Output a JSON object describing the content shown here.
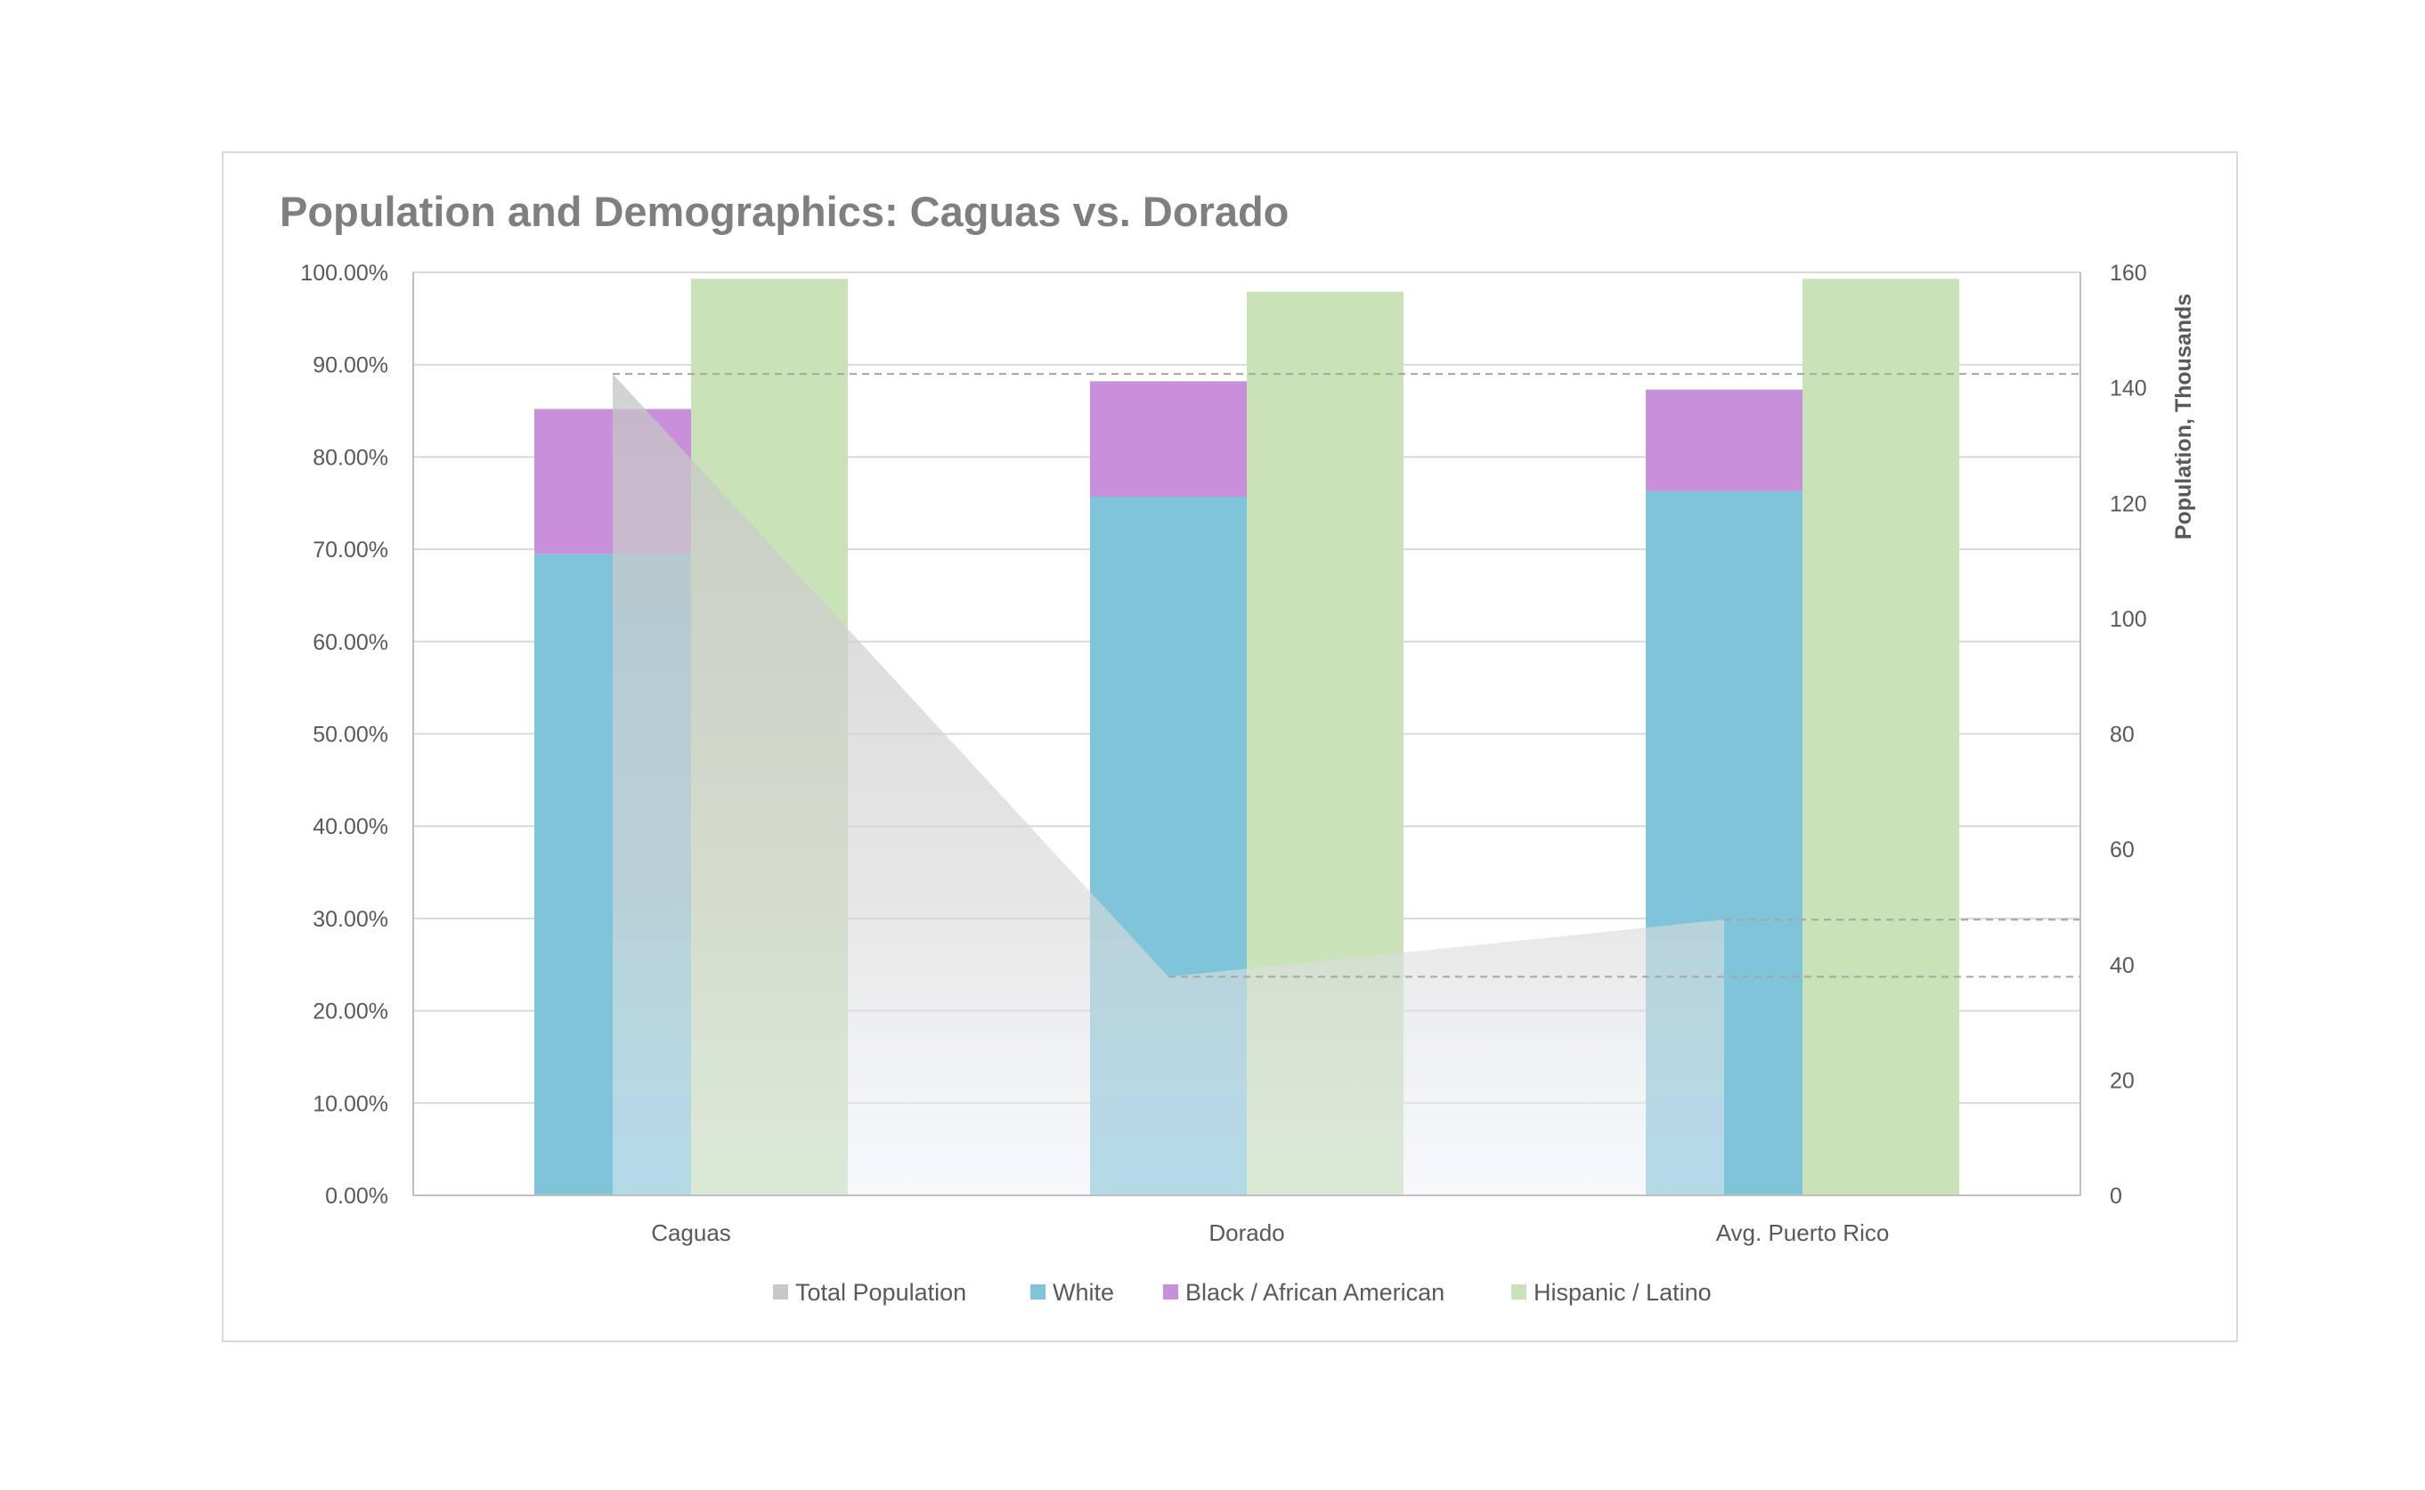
{
  "chart_data": {
    "type": "bar",
    "title": "Population and Demographics: Caguas vs. Dorado",
    "categories": [
      "Caguas",
      "Dorado",
      "Avg. Puerto Rico"
    ],
    "y_left": {
      "range": [
        0,
        1
      ],
      "tick_values": [
        0,
        0.1,
        0.2,
        0.3,
        0.4,
        0.5,
        0.6,
        0.7,
        0.8,
        0.9,
        1.0
      ],
      "tick_labels": [
        "0.00%",
        "10.00%",
        "20.00%",
        "30.00%",
        "40.00%",
        "50.00%",
        "60.00%",
        "70.00%",
        "80.00%",
        "90.00%",
        "100.00%"
      ]
    },
    "y_right": {
      "label": "Population, Thousands",
      "range": [
        0,
        160
      ],
      "tick_values": [
        0,
        20,
        40,
        60,
        80,
        100,
        120,
        140,
        160
      ],
      "tick_labels": [
        "0",
        "20",
        "40",
        "60",
        "80",
        "100",
        "120",
        "140",
        "160"
      ]
    },
    "grid": true,
    "legend_position": "bottom",
    "series": [
      {
        "name": "Total Population",
        "kind": "area",
        "axis": "right",
        "values": [
          142.4,
          37.9,
          47.8
        ],
        "color": "#c8c8c8"
      },
      {
        "name": "White",
        "kind": "stacked-bar",
        "axis": "left",
        "values": [
          0.695,
          0.757,
          0.763
        ],
        "color": "#7fc4d9"
      },
      {
        "name": "Black / African American",
        "kind": "stacked-bar",
        "axis": "left",
        "values": [
          0.157,
          0.125,
          0.11
        ],
        "color": "#c890da"
      },
      {
        "name": "Hispanic / Latino",
        "kind": "bar",
        "axis": "left",
        "values": [
          0.993,
          0.979,
          0.993
        ],
        "color": "#c9e2b8"
      }
    ]
  }
}
